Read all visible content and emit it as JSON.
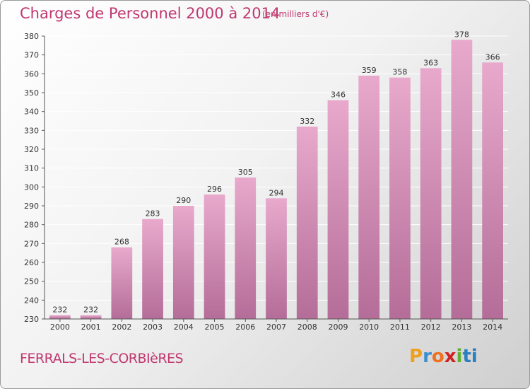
{
  "header": {
    "title": "Charges de Personnel 2000 à 2014",
    "subtitle": "(en milliers d'€)"
  },
  "footer": {
    "commune": "FERRALS-LES-CORBIèRES",
    "logo_letters": [
      "P",
      "r",
      "o",
      "x",
      "i",
      "ti"
    ]
  },
  "colors": {
    "title": "#c0386f",
    "bar_top": "#e8a9cc",
    "bar_bottom": "#b46d98",
    "gridline": "#ffffff"
  },
  "chart_data": {
    "type": "bar",
    "categories": [
      "2000",
      "2001",
      "2002",
      "2003",
      "2004",
      "2005",
      "2006",
      "2007",
      "2008",
      "2009",
      "2010",
      "2011",
      "2012",
      "2013",
      "2014"
    ],
    "values": [
      232,
      232,
      268,
      283,
      290,
      296,
      305,
      294,
      332,
      346,
      359,
      358,
      363,
      378,
      366
    ],
    "ylim": [
      230,
      380
    ],
    "yticks": [
      230,
      240,
      250,
      260,
      270,
      280,
      290,
      300,
      310,
      320,
      330,
      340,
      350,
      360,
      370,
      380
    ],
    "grid": true,
    "legend": "none"
  }
}
